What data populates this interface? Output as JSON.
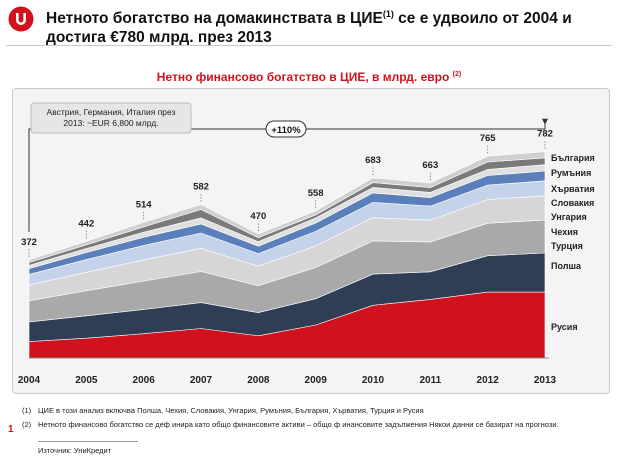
{
  "header": {
    "title_line1": "Нетното богатство на домакинствата в ЦИЕ",
    "title_sup": "(1)",
    "title_line1_end": " се е удвоило от 2004 и",
    "title_line2": "достига €780 млрд. през 2013"
  },
  "colors": {
    "accent": "#d0121e",
    "russia": "#d0121e",
    "poland": "#2f3d55",
    "turkey": "#a9a9a9",
    "czech": "#d6d6d6",
    "hungary": "#c5d3ea",
    "slovakia": "#5b7fba",
    "croatia": "#e0e0e0",
    "romania": "#7a7a7a",
    "bulgaria": "#cfcfcf"
  },
  "chart_data": {
    "type": "area",
    "title": "Нетно финансово богатство в ЦИЕ, в млрд. евро",
    "title_sup": "(2)",
    "categories": [
      "2004",
      "2005",
      "2006",
      "2007",
      "2008",
      "2009",
      "2010",
      "2011",
      "2012",
      "2013"
    ],
    "totals": [
      "372",
      "442",
      "514",
      "582",
      "470",
      "558",
      "683",
      "663",
      "765",
      "782"
    ],
    "ylim": [
      0,
      800
    ],
    "stacked": true,
    "series": [
      {
        "name": "Русия",
        "values": [
          62,
          75,
          92,
          112,
          84,
          125,
          200,
          222,
          250,
          250
        ]
      },
      {
        "name": "Полша",
        "values": [
          75,
          85,
          92,
          98,
          88,
          100,
          118,
          105,
          138,
          148
        ]
      },
      {
        "name": "Турция",
        "values": [
          80,
          95,
          108,
          118,
          102,
          118,
          126,
          113,
          123,
          125
        ]
      },
      {
        "name": "Чехия",
        "values": [
          60,
          70,
          80,
          88,
          74,
          82,
          88,
          83,
          90,
          92
        ]
      },
      {
        "name": "Унгария",
        "values": [
          40,
          48,
          55,
          58,
          48,
          55,
          58,
          53,
          55,
          57
        ]
      },
      {
        "name": "Словакия",
        "values": [
          22,
          27,
          31,
          34,
          28,
          32,
          36,
          32,
          36,
          37
        ]
      },
      {
        "name": "Хърватия",
        "values": [
          12,
          15,
          19,
          23,
          17,
          19,
          21,
          20,
          23,
          24
        ]
      },
      {
        "name": "Румъния",
        "values": [
          11,
          14,
          20,
          32,
          15,
          12,
          18,
          18,
          28,
          26
        ]
      },
      {
        "name": "България",
        "values": [
          10,
          13,
          17,
          19,
          14,
          15,
          18,
          17,
          22,
          23
        ]
      }
    ],
    "annotation_box": "Австрия, Германия, Италия през 2013: ~EUR 6,800 млрд.",
    "growth_label": "+110%"
  },
  "footnotes": {
    "note1_num": "(1)",
    "note1": "ЦИЕ в този анализ включва Полша, Чехия, Словакия, Унгария, Румъния, България, Хърватия, Турция и Русия",
    "note2_num": "(2)",
    "note2": "Нетното финансово богатство се деф инира като общо финансовите активи – общо ф инансовите задължения Някои данни се базират на прогнози.",
    "page_number": "1",
    "source": "Източник: УниКредит"
  }
}
